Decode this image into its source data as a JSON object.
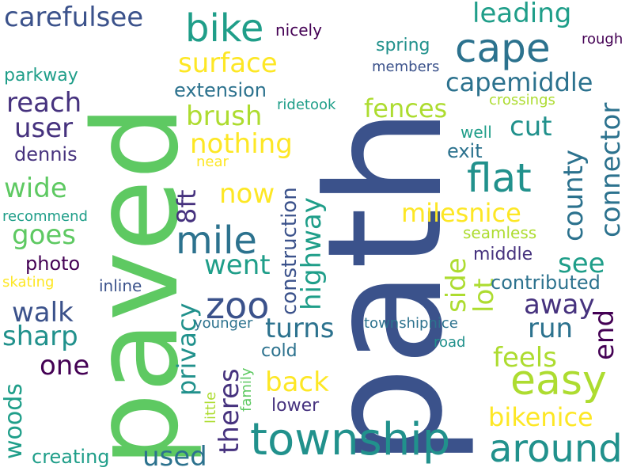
{
  "palette": {
    "dark_blue": "#3b528b",
    "indigo": "#46327e",
    "deep_purple": "#440154",
    "teal": "#21918c",
    "sea_green": "#1f9e89",
    "green": "#5ec962",
    "lime": "#addc30",
    "yellow": "#fde725",
    "blue_teal": "#2c728e"
  },
  "words": {
    "path": "path",
    "paved": "paved",
    "township": "township",
    "around": "around",
    "easy": "easy",
    "mile": "mile",
    "zoo": "zoo",
    "flat": "flat",
    "cape": "cape",
    "bike": "bike",
    "carefulsee": "carefulsee",
    "leading": "leading",
    "surface": "surface",
    "capemiddle": "capemiddle",
    "reach": "reach",
    "user": "user",
    "fences": "fences",
    "brush": "brush",
    "nothing": "nothing",
    "cut": "cut",
    "wide": "wide",
    "goes": "goes",
    "now": "now",
    "milesnice": "milesnice",
    "walk": "walk",
    "sharp": "sharp",
    "one": "one",
    "went": "went",
    "turns": "turns",
    "away": "away",
    "run": "run",
    "see": "see",
    "feels": "feels",
    "back": "back",
    "bikenice": "bikenice",
    "used": "used",
    "county": "county",
    "connector": "connector",
    "privacy": "privacy",
    "8ft": "8ft",
    "construction": "construction",
    "highway": "highway",
    "side": "side",
    "lot": "lot",
    "end": "end",
    "theres": "theres",
    "woods": "woods",
    "creating": "creating",
    "extension": "extension",
    "dennis": "dennis",
    "parkway": "parkway",
    "photo": "photo",
    "recommend": "recommend",
    "skating": "skating",
    "inline": "inline",
    "nicely": "nicely",
    "spring": "spring",
    "members": "members",
    "rough": "rough",
    "ridetook": "ridetook",
    "crossings": "crossings",
    "well": "well",
    "exit": "exit",
    "near": "near",
    "seamless": "seamless",
    "middle": "middle",
    "contributed": "contributed",
    "younger": "younger",
    "townshipnice": "townshipnice",
    "cold": "cold",
    "road": "road",
    "lower": "lower",
    "little": "little",
    "family": "family"
  }
}
